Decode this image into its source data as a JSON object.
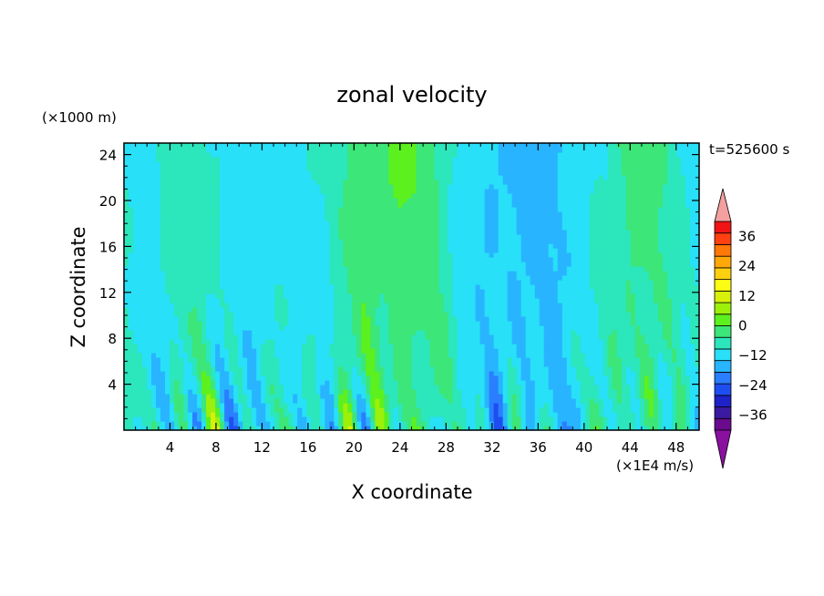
{
  "chart_data": {
    "type": "heatmap",
    "title": "zonal velocity",
    "xlabel": "X coordinate",
    "ylabel": "Z coordinate",
    "y_units": "(×1000 m)",
    "x_units": "(×1E4 m/s)",
    "time_label": "t=525600 s",
    "xlim": [
      0,
      50
    ],
    "ylim": [
      0,
      25
    ],
    "x_ticks": [
      "4",
      "8",
      "12",
      "16",
      "20",
      "24",
      "28",
      "32",
      "36",
      "40",
      "44",
      "48"
    ],
    "y_ticks": [
      "4",
      "8",
      "12",
      "16",
      "20",
      "24"
    ],
    "colorbar": {
      "min": -42,
      "max": 42,
      "step": 6,
      "extend": "both",
      "tick_labels": [
        "36",
        "24",
        "12",
        "0",
        "−12",
        "−24",
        "−36"
      ],
      "colors": [
        "#6a0a8c",
        "#3a1aa0",
        "#1e22c8",
        "#1e4ef0",
        "#2a7eff",
        "#28b4ff",
        "#28e0f8",
        "#2ce6bc",
        "#3ce678",
        "#5cf01e",
        "#9cf00a",
        "#d8f00a",
        "#fcfc14",
        "#ffd010",
        "#ffa808",
        "#ff7808",
        "#ff4010",
        "#f01414"
      ],
      "over_color": "#f4a0a0",
      "under_color": "#8a10a0"
    },
    "column_profiles": {
      "x": [
        0,
        2,
        4,
        6,
        8,
        10,
        12,
        14,
        16,
        18,
        20,
        22,
        24,
        26,
        28,
        30,
        32,
        34,
        36,
        38,
        40,
        42,
        44,
        46,
        48,
        50
      ],
      "upper_level_mean": [
        1,
        -3,
        1,
        2,
        3,
        -4,
        -5,
        -2,
        1,
        -1,
        8,
        12,
        14,
        10,
        4,
        -3,
        -8,
        -9,
        -8,
        -7,
        -4,
        2,
        10,
        8,
        2,
        0
      ]
    }
  }
}
